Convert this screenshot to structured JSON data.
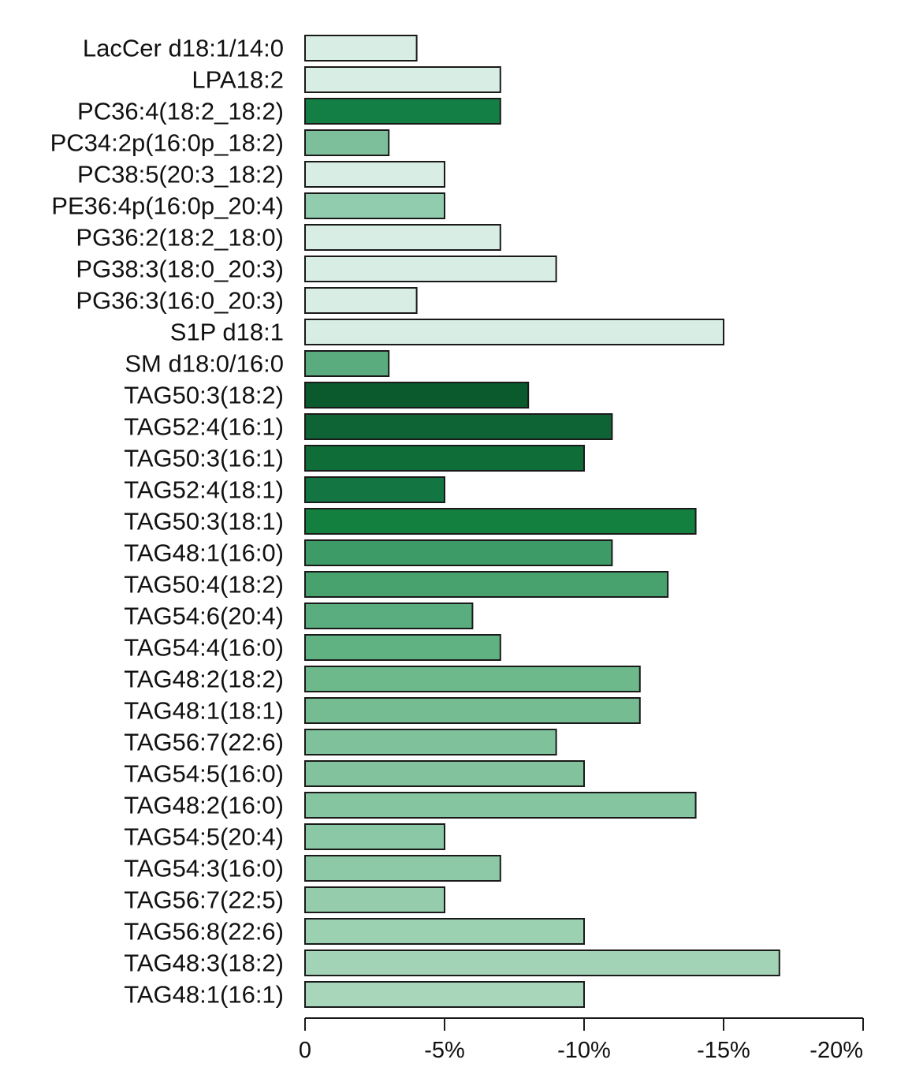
{
  "chart_data": {
    "type": "bar",
    "orientation": "horizontal",
    "categories": [
      "LacCer d18:1/14:0",
      "LPA18:2",
      "PC36:4(18:2_18:2)",
      "PC34:2p(16:0p_18:2)",
      "PC38:5(20:3_18:2)",
      "PE36:4p(16:0p_20:4)",
      "PG36:2(18:2_18:0)",
      "PG38:3(18:0_20:3)",
      "PG36:3(16:0_20:3)",
      "S1P d18:1",
      "SM d18:0/16:0",
      "TAG50:3(18:2)",
      "TAG52:4(16:1)",
      "TAG50:3(16:1)",
      "TAG52:4(18:1)",
      "TAG50:3(18:1)",
      "TAG48:1(16:0)",
      "TAG50:4(18:2)",
      "TAG54:6(20:4)",
      "TAG54:4(16:0)",
      "TAG48:2(18:2)",
      "TAG48:1(18:1)",
      "TAG56:7(22:6)",
      "TAG54:5(16:0)",
      "TAG48:2(16:0)",
      "TAG54:5(20:4)",
      "TAG54:3(16:0)",
      "TAG56:7(22:5)",
      "TAG56:8(22:6)",
      "TAG48:3(18:2)",
      "TAG48:1(16:1)"
    ],
    "values": [
      -4,
      -7,
      -7,
      -3,
      -5,
      -5,
      -7,
      -9,
      -4,
      -15,
      -3,
      -8,
      -11,
      -10,
      -5,
      -14,
      -11,
      -13,
      -6,
      -7,
      -12,
      -12,
      -9,
      -10,
      -14,
      -5,
      -7,
      -5,
      -10,
      -17,
      -10
    ],
    "colors": [
      "#d8ede3",
      "#d8ede3",
      "#137f44",
      "#7cbf9a",
      "#d8ede3",
      "#92ccae",
      "#d8ede3",
      "#d8ede3",
      "#d8ede3",
      "#d8ede3",
      "#5aac7f",
      "#0a5a2e",
      "#0e6434",
      "#0f6d38",
      "#137541",
      "#148040",
      "#3d9b67",
      "#47a26e",
      "#5aad7e",
      "#61b283",
      "#6db98c",
      "#76bc93",
      "#7fc19a",
      "#82c39d",
      "#85c5a0",
      "#8bc8a5",
      "#8dc9a6",
      "#94ccac",
      "#9bd0b1",
      "#a2d3b6",
      "#a8d6bb"
    ],
    "xlim": [
      0,
      -20
    ],
    "ticks": [
      0,
      -5,
      -10,
      -15,
      -20
    ],
    "tick_labels": [
      "0",
      "-5%",
      "-10%",
      "-15%",
      "-20%"
    ],
    "title": "",
    "xlabel": "",
    "ylabel": ""
  }
}
